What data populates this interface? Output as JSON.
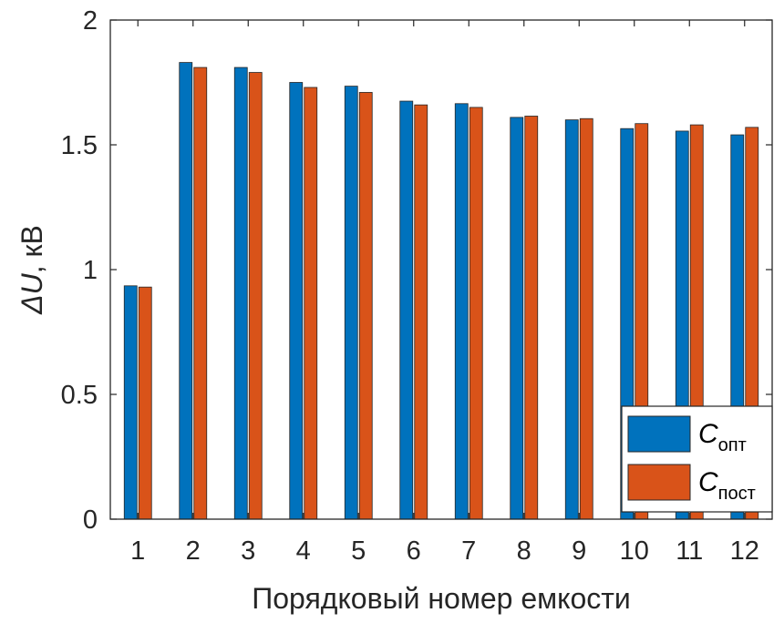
{
  "chart_data": {
    "type": "bar",
    "xlabel": "Порядковый номер емкости",
    "ylabel_symbol": "ΔU",
    "ylabel_unit": ", кВ",
    "categories": [
      "1",
      "2",
      "3",
      "4",
      "5",
      "6",
      "7",
      "8",
      "9",
      "10",
      "11",
      "12"
    ],
    "ylim": [
      0,
      2
    ],
    "yticks": [
      0,
      0.5,
      1,
      1.5,
      2
    ],
    "ytick_labels": [
      "0",
      "0.5",
      "1",
      "1.5",
      "2"
    ],
    "grid": false,
    "legend_position": "bottom-right",
    "series": [
      {
        "name_main": "C",
        "name_sub": "опт",
        "color": "#0072BD",
        "values": [
          0.935,
          1.83,
          1.81,
          1.75,
          1.735,
          1.675,
          1.665,
          1.61,
          1.6,
          1.565,
          1.555,
          1.54
        ]
      },
      {
        "name_main": "C",
        "name_sub": "пост",
        "color": "#D95319",
        "values": [
          0.93,
          1.81,
          1.79,
          1.73,
          1.71,
          1.66,
          1.65,
          1.615,
          1.605,
          1.585,
          1.58,
          1.57
        ]
      }
    ]
  }
}
